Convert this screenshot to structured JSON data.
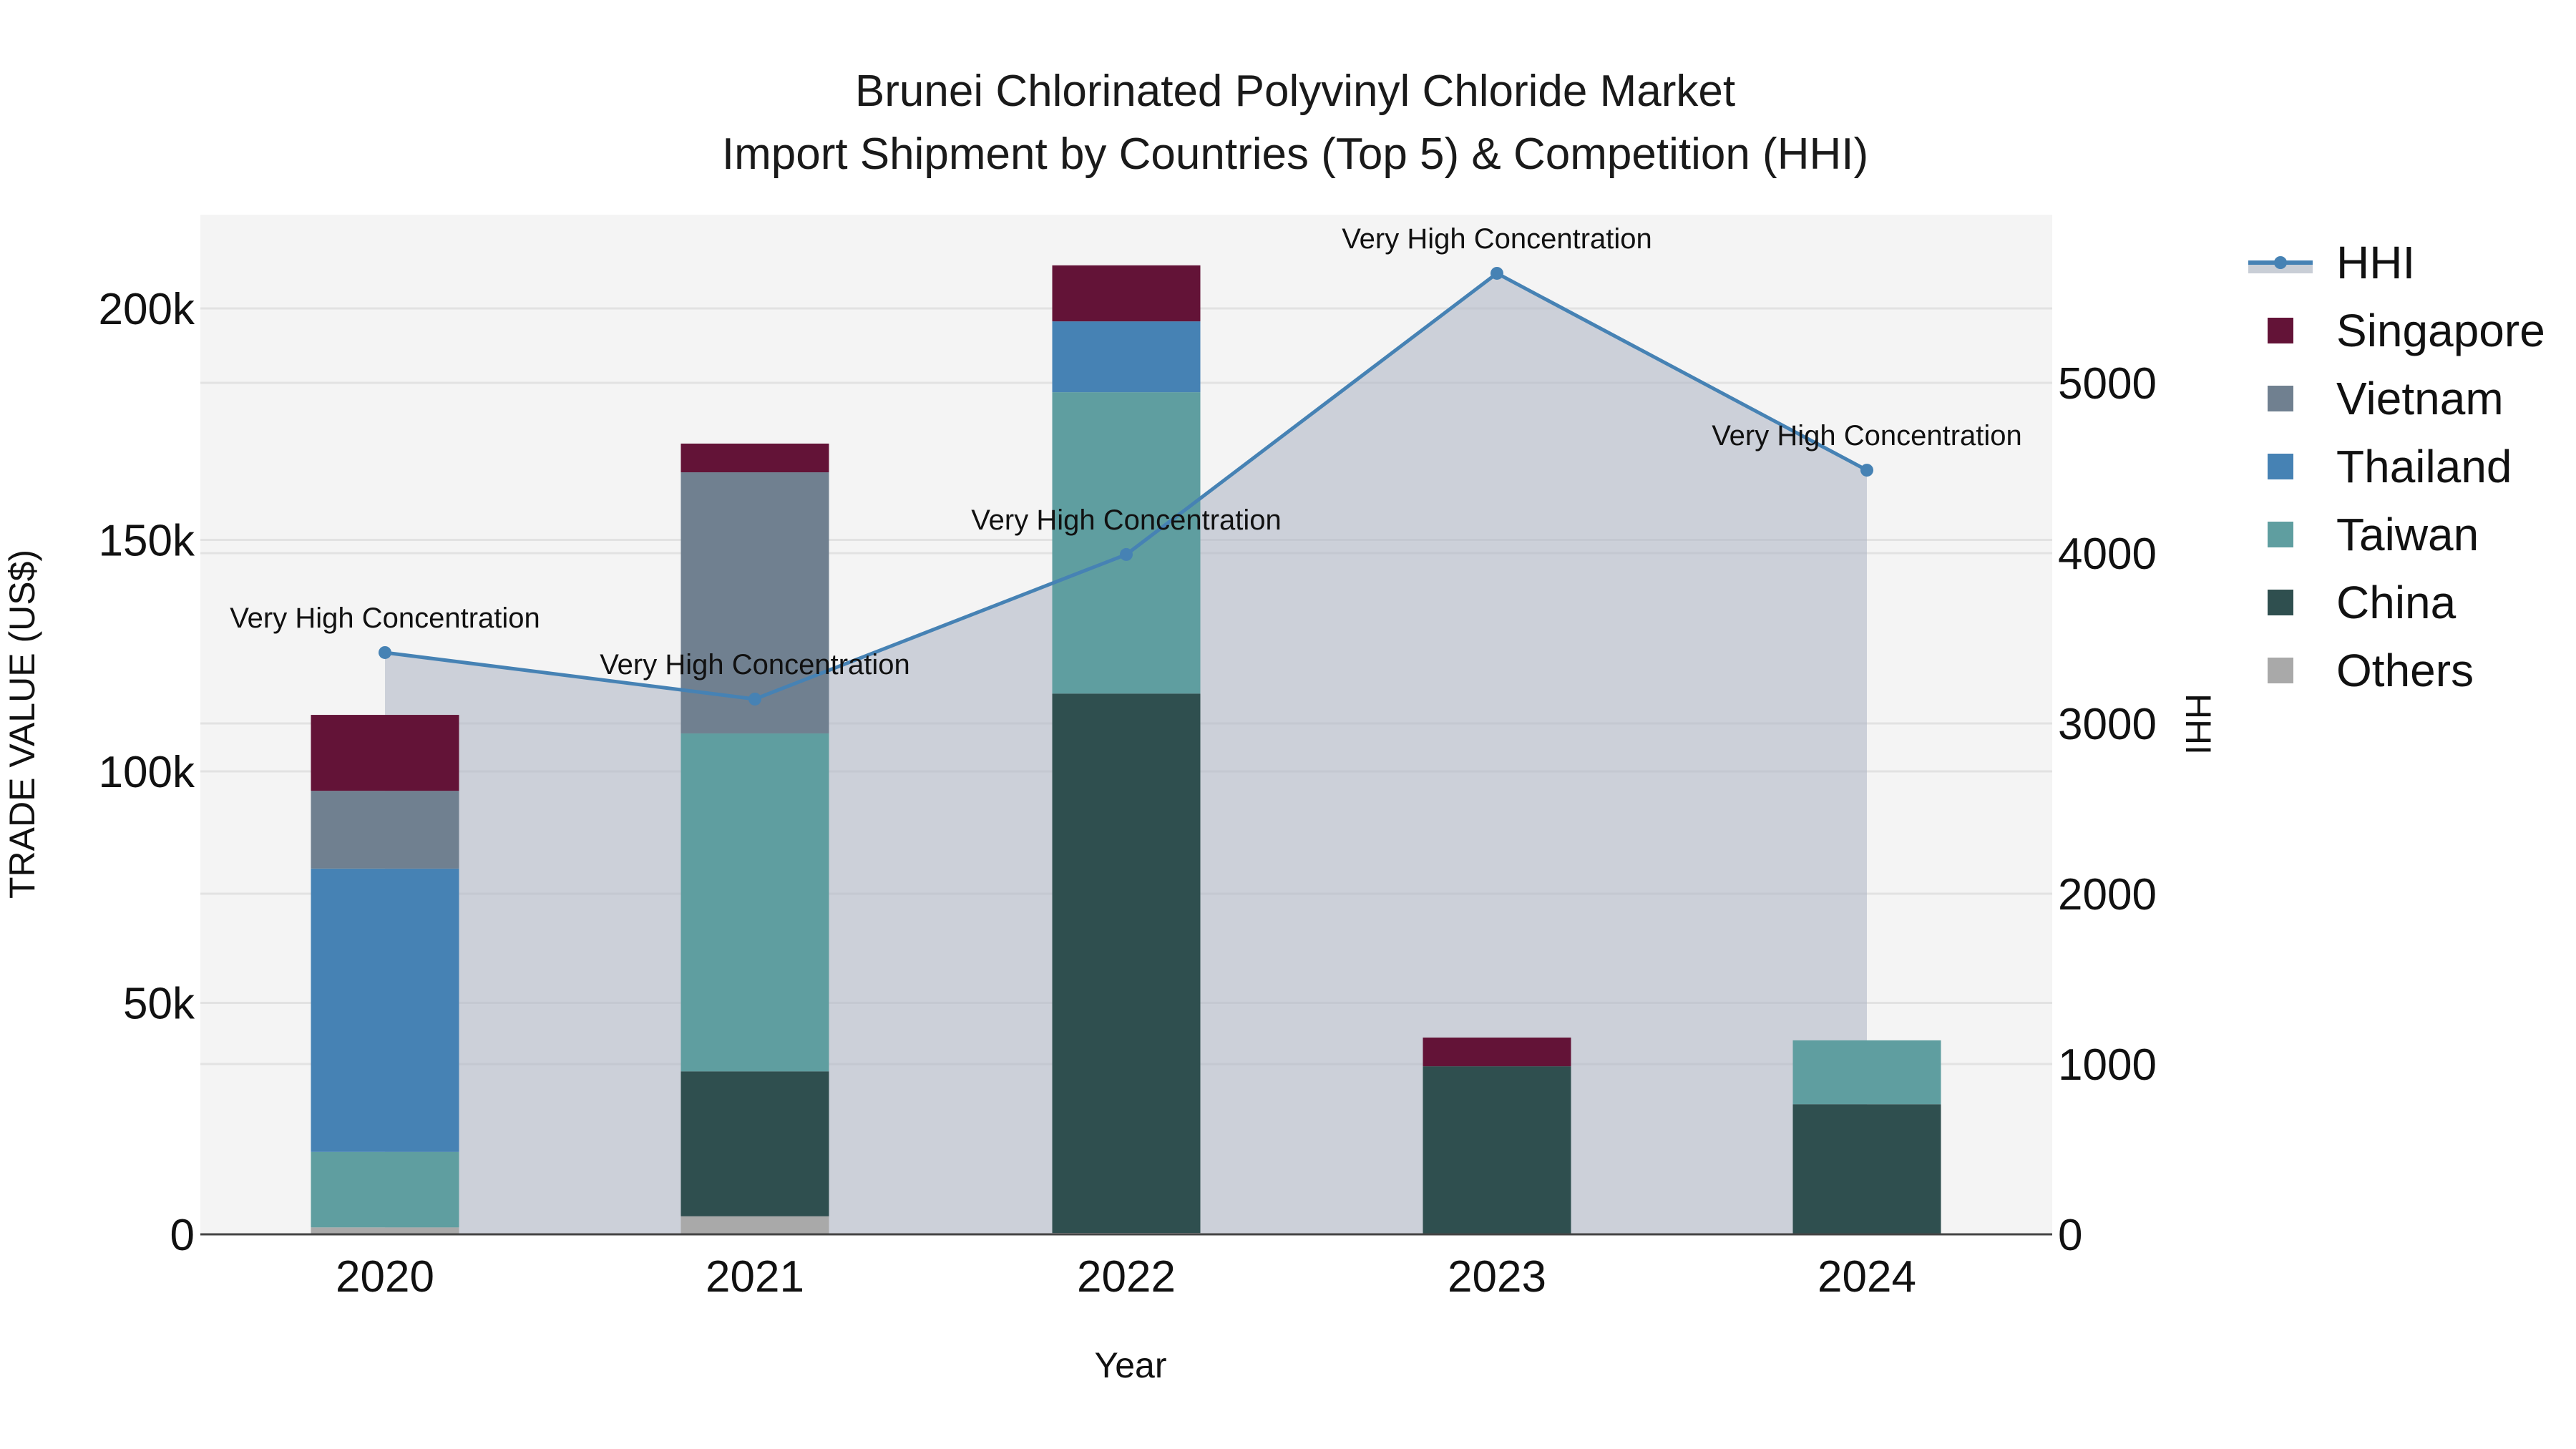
{
  "chart_data": {
    "type": "bar",
    "subtype": "stacked bar with HHI area-line on secondary axis",
    "title": "Brunei Chlorinated Polyvinyl Chloride Market",
    "subtitle": "Import Shipment by Countries (Top 5) & Competition (HHI)",
    "xlabel": "Year",
    "ylabel": "TRADE VALUE (US$)",
    "y2label": "HHI",
    "categories": [
      "2020",
      "2021",
      "2022",
      "2023",
      "2024"
    ],
    "ylim": [
      0,
      220000
    ],
    "y_ticks": [
      0,
      50000,
      100000,
      150000,
      200000
    ],
    "y_tick_labels": [
      "0",
      "50k",
      "100k",
      "150k",
      "200k"
    ],
    "y2lim": [
      0,
      6000
    ],
    "y2_ticks": [
      0,
      1000,
      2000,
      3000,
      4000,
      5000
    ],
    "y2_tick_labels": [
      "0",
      "1000",
      "2000",
      "3000",
      "4000",
      "5000"
    ],
    "grid": true,
    "legend_position": "right",
    "series": [
      {
        "name": "Others",
        "color": "#a9a9a9",
        "values": [
          1500,
          3900,
          300,
          0,
          0
        ]
      },
      {
        "name": "China",
        "color": "#2f4f4f",
        "values": [
          0,
          31300,
          116500,
          36300,
          28100
        ]
      },
      {
        "name": "Taiwan",
        "color": "#5f9ea0",
        "values": [
          16300,
          73000,
          65100,
          0,
          13800
        ]
      },
      {
        "name": "Thailand",
        "color": "#4682b4",
        "values": [
          61200,
          0,
          15300,
          0,
          0
        ]
      },
      {
        "name": "Vietnam",
        "color": "#708090",
        "values": [
          16800,
          56400,
          0,
          0,
          0
        ]
      },
      {
        "name": "Singapore",
        "color": "#631337",
        "values": [
          16400,
          6200,
          12100,
          6200,
          0
        ]
      }
    ],
    "hhi": {
      "name": "HHI",
      "color": "#4682b4",
      "fill": "rgba(176,184,198,0.6)",
      "values": [
        3416,
        3143,
        3992,
        5643,
        4487
      ],
      "annotations": [
        "Very High Concentration",
        "Very High Concentration",
        "Very High Concentration",
        "Very High Concentration",
        "Very High Concentration"
      ]
    }
  },
  "legend": {
    "items": [
      {
        "label": "HHI",
        "type": "line"
      },
      {
        "label": "Singapore",
        "color": "#631337"
      },
      {
        "label": "Vietnam",
        "color": "#708090"
      },
      {
        "label": "Thailand",
        "color": "#4682b4"
      },
      {
        "label": "Taiwan",
        "color": "#5f9ea0"
      },
      {
        "label": "China",
        "color": "#2f4f4f"
      },
      {
        "label": "Others",
        "color": "#a9a9a9"
      }
    ]
  }
}
